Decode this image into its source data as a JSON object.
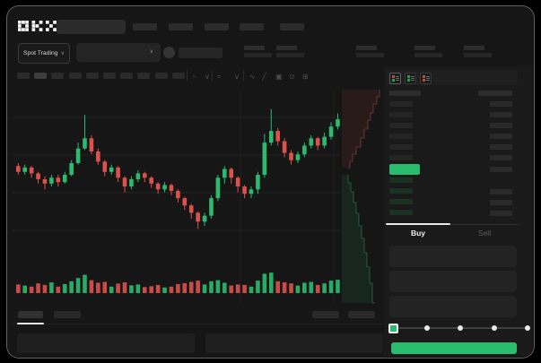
{
  "app": {
    "name": "OKX"
  },
  "colors": {
    "up": "#2abb6e",
    "down": "#dd514c",
    "accent_green": "#2abb6e",
    "window_bg": "#161616",
    "placeholder_block": "#2b2b2b",
    "placeholder_dim": "#262626",
    "bid_tint": "#1a3123",
    "tab_underline": "#e8e8e8"
  },
  "header": {
    "logo_text": "OKX",
    "search": {
      "value": "",
      "placeholder": ""
    },
    "nav_placeholder_count": 5
  },
  "market_bar": {
    "market_selector_label": "Spot Trading",
    "chevron_glyph": "∨",
    "stat_pair_count": 5
  },
  "chart_toolbar": {
    "timeframe_button_count": 10,
    "active_timeframe_index": 1,
    "icons": [
      {
        "name": "indicator-icon",
        "glyph": "~"
      },
      {
        "name": "chevron-down-icon",
        "glyph": "∨"
      },
      {
        "name": "compare-icon",
        "glyph": "≈"
      },
      {
        "name": "chevron-down-icon",
        "glyph": "∨"
      },
      {
        "name": "line-style-icon",
        "glyph": "∿"
      },
      {
        "name": "draw-icon",
        "glyph": "╱"
      },
      {
        "name": "camera-icon",
        "glyph": "▣"
      },
      {
        "name": "settings-icon",
        "glyph": "⊙"
      },
      {
        "name": "fullscreen-icon",
        "glyph": "⊞"
      }
    ]
  },
  "chart_data": {
    "type": "candlestick",
    "title": "",
    "axes_labeled": false,
    "scale_note": "no numeric axis labels visible; OHLC given on relative 0-100 price scale, volume on relative 0-100 scale",
    "up_color": "#2abb6e",
    "down_color": "#dd514c",
    "gridlines": {
      "horizontal_count": 4,
      "vertical_count": 2,
      "grid_on": true
    },
    "volume_pane": true,
    "candles_ohlcv": [
      [
        52,
        54,
        46,
        48,
        40
      ],
      [
        48,
        53,
        46,
        51,
        35
      ],
      [
        51,
        52,
        44,
        47,
        30
      ],
      [
        47,
        48,
        40,
        43,
        45
      ],
      [
        43,
        45,
        36,
        40,
        38
      ],
      [
        40,
        46,
        38,
        44,
        50
      ],
      [
        44,
        46,
        38,
        41,
        30
      ],
      [
        41,
        48,
        40,
        46,
        42
      ],
      [
        46,
        56,
        45,
        54,
        55
      ],
      [
        54,
        68,
        53,
        64,
        70
      ],
      [
        64,
        87,
        63,
        71,
        85
      ],
      [
        71,
        73,
        60,
        62,
        60
      ],
      [
        62,
        64,
        53,
        55,
        48
      ],
      [
        55,
        56,
        45,
        48,
        52
      ],
      [
        48,
        53,
        46,
        51,
        30
      ],
      [
        51,
        52,
        41,
        44,
        44
      ],
      [
        44,
        45,
        34,
        38,
        50
      ],
      [
        38,
        45,
        36,
        43,
        36
      ],
      [
        43,
        49,
        41,
        47,
        40
      ],
      [
        47,
        48,
        41,
        44,
        28
      ],
      [
        44,
        45,
        37,
        40,
        32
      ],
      [
        40,
        41,
        33,
        36,
        38
      ],
      [
        36,
        41,
        34,
        39,
        26
      ],
      [
        39,
        40,
        32,
        35,
        30
      ],
      [
        35,
        36,
        27,
        30,
        42
      ],
      [
        30,
        31,
        22,
        25,
        46
      ],
      [
        25,
        26,
        16,
        20,
        52
      ],
      [
        20,
        21,
        9,
        14,
        58
      ],
      [
        14,
        20,
        11,
        18,
        40
      ],
      [
        18,
        32,
        16,
        30,
        55
      ],
      [
        30,
        46,
        28,
        44,
        60
      ],
      [
        44,
        52,
        40,
        50,
        48
      ],
      [
        50,
        51,
        40,
        44,
        35
      ],
      [
        44,
        45,
        34,
        38,
        40
      ],
      [
        38,
        39,
        30,
        33,
        38
      ],
      [
        33,
        38,
        30,
        36,
        30
      ],
      [
        36,
        48,
        33,
        46,
        58
      ],
      [
        46,
        74,
        44,
        68,
        90
      ],
      [
        68,
        91,
        66,
        76,
        95
      ],
      [
        76,
        78,
        66,
        69,
        55
      ],
      [
        69,
        71,
        58,
        61,
        50
      ],
      [
        61,
        63,
        53,
        56,
        45
      ],
      [
        56,
        62,
        54,
        60,
        35
      ],
      [
        60,
        68,
        58,
        66,
        48
      ],
      [
        66,
        73,
        64,
        71,
        52
      ],
      [
        71,
        72,
        63,
        66,
        38
      ],
      [
        66,
        75,
        64,
        72,
        45
      ],
      [
        72,
        82,
        70,
        79,
        58
      ],
      [
        79,
        88,
        77,
        84,
        62
      ]
    ]
  },
  "depth_chart": {
    "note": "vertical market-depth strip between chart and order book; stepped cumulative curves, asks above spread, bids below",
    "asks_steps": [
      [
        423,
        100
      ],
      [
        420,
        108
      ],
      [
        416,
        116
      ],
      [
        413,
        126
      ],
      [
        410,
        134
      ],
      [
        406,
        144
      ],
      [
        402,
        154
      ],
      [
        397,
        164
      ],
      [
        393,
        172
      ],
      [
        390,
        180
      ],
      [
        388,
        187
      ]
    ],
    "bids_steps": [
      [
        388,
        195
      ],
      [
        391,
        204
      ],
      [
        394,
        214
      ],
      [
        397,
        226
      ],
      [
        400,
        238
      ],
      [
        403,
        252
      ],
      [
        406,
        266
      ],
      [
        409,
        282
      ],
      [
        412,
        298
      ],
      [
        415,
        316
      ],
      [
        418,
        338
      ]
    ]
  },
  "orderbook": {
    "view_toggle_icons": [
      {
        "name": "orderbook-both-sides-icon",
        "mode": "both",
        "active": true
      },
      {
        "name": "orderbook-bids-only-icon",
        "mode": "bids",
        "active": false
      },
      {
        "name": "orderbook-asks-only-icon",
        "mode": "asks",
        "active": false
      }
    ],
    "header_columns": 2,
    "ask_row_count": 6,
    "last_price_row": {
      "highlight": "up"
    },
    "bid_rows": [
      {
        "has_amount": false
      },
      {
        "has_amount": true
      },
      {
        "has_amount": true
      },
      {
        "has_amount": true
      }
    ]
  },
  "trade_panel": {
    "buy_tab_label": "Buy",
    "sell_tab_label": "Sell",
    "active_tab": "buy",
    "field_count": 3,
    "slider_stop_count": 5,
    "slider_position_index": 0,
    "submit_button_label": ""
  },
  "bottom_panel": {
    "tab_count": 2,
    "active_tab_index": 0,
    "right_placeholder_count": 2,
    "box_count": 2
  }
}
